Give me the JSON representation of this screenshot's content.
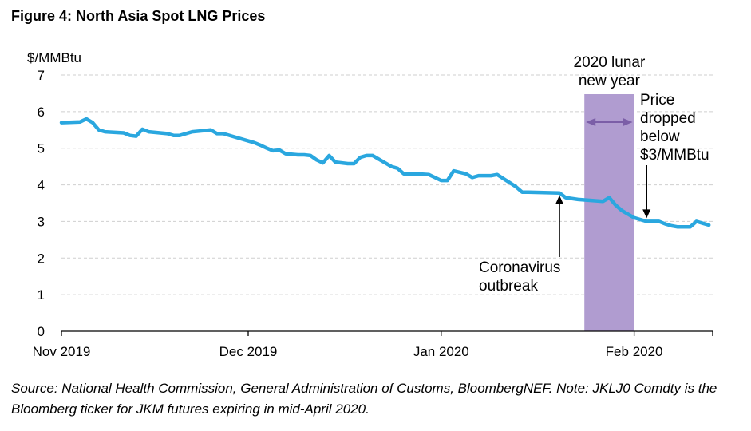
{
  "title": "Figure 4:  North Asia Spot LNG Prices",
  "source_note": "Source: National Health Commission, General Administration of Customs, BloombergNEF. Note: JKLJ0 Comdty is the Bloomberg ticker for JKM futures expiring in mid-April 2020.",
  "colors": {
    "line": "#2aa7df",
    "shade": "#b09cd0",
    "arrow": "#7b5ea7",
    "grid": "#cfcfcf"
  },
  "chart_data": {
    "type": "line",
    "title": "Figure 4:  North Asia Spot LNG Prices",
    "ylabel": "$/MMBtu",
    "xlabel": "",
    "ylim": [
      0,
      7
    ],
    "yticks": [
      0,
      1,
      2,
      3,
      4,
      5,
      6,
      7
    ],
    "xlim": [
      "2019-11-01",
      "2020-02-13"
    ],
    "xticks": [
      {
        "date": "2019-11-01",
        "label": "Nov 2019"
      },
      {
        "date": "2019-12-01",
        "label": "Dec 2019"
      },
      {
        "date": "2020-01-01",
        "label": "Jan 2020"
      },
      {
        "date": "2020-02-01",
        "label": "Feb 2020"
      }
    ],
    "grid": "horizontal dashed",
    "series": [
      {
        "points": [
          [
            "2019-11-01",
            5.7
          ],
          [
            "2019-11-04",
            5.72
          ],
          [
            "2019-11-05",
            5.8
          ],
          [
            "2019-11-06",
            5.7
          ],
          [
            "2019-11-07",
            5.5
          ],
          [
            "2019-11-08",
            5.45
          ],
          [
            "2019-11-11",
            5.42
          ],
          [
            "2019-11-12",
            5.35
          ],
          [
            "2019-11-13",
            5.33
          ],
          [
            "2019-11-14",
            5.52
          ],
          [
            "2019-11-15",
            5.45
          ],
          [
            "2019-11-18",
            5.4
          ],
          [
            "2019-11-19",
            5.35
          ],
          [
            "2019-11-20",
            5.35
          ],
          [
            "2019-11-22",
            5.45
          ],
          [
            "2019-11-25",
            5.5
          ],
          [
            "2019-11-26",
            5.4
          ],
          [
            "2019-11-27",
            5.4
          ],
          [
            "2019-11-29",
            5.3
          ],
          [
            "2019-12-02",
            5.15
          ],
          [
            "2019-12-03",
            5.08
          ],
          [
            "2019-12-04",
            5.0
          ],
          [
            "2019-12-05",
            4.93
          ],
          [
            "2019-12-06",
            4.95
          ],
          [
            "2019-12-07",
            4.85
          ],
          [
            "2019-12-09",
            4.82
          ],
          [
            "2019-12-10",
            4.82
          ],
          [
            "2019-12-11",
            4.8
          ],
          [
            "2019-12-12",
            4.68
          ],
          [
            "2019-12-13",
            4.6
          ],
          [
            "2019-12-14",
            4.8
          ],
          [
            "2019-12-15",
            4.62
          ],
          [
            "2019-12-17",
            4.58
          ],
          [
            "2019-12-18",
            4.58
          ],
          [
            "2019-12-19",
            4.75
          ],
          [
            "2019-12-20",
            4.8
          ],
          [
            "2019-12-21",
            4.8
          ],
          [
            "2019-12-23",
            4.6
          ],
          [
            "2019-12-24",
            4.5
          ],
          [
            "2019-12-25",
            4.45
          ],
          [
            "2019-12-26",
            4.3
          ],
          [
            "2019-12-28",
            4.3
          ],
          [
            "2019-12-30",
            4.28
          ],
          [
            "2019-12-31",
            4.2
          ],
          [
            "2020-01-01",
            4.12
          ],
          [
            "2020-01-02",
            4.12
          ],
          [
            "2020-01-03",
            4.38
          ],
          [
            "2020-01-05",
            4.3
          ],
          [
            "2020-01-06",
            4.2
          ],
          [
            "2020-01-07",
            4.25
          ],
          [
            "2020-01-09",
            4.25
          ],
          [
            "2020-01-10",
            4.28
          ],
          [
            "2020-01-13",
            3.95
          ],
          [
            "2020-01-14",
            3.8
          ],
          [
            "2020-01-15",
            3.8
          ],
          [
            "2020-01-20",
            3.78
          ],
          [
            "2020-01-21",
            3.65
          ],
          [
            "2020-01-23",
            3.6
          ],
          [
            "2020-01-27",
            3.55
          ],
          [
            "2020-01-28",
            3.65
          ],
          [
            "2020-01-29",
            3.45
          ],
          [
            "2020-01-30",
            3.3
          ],
          [
            "2020-02-01",
            3.1
          ],
          [
            "2020-02-03",
            3.0
          ],
          [
            "2020-02-05",
            3.0
          ],
          [
            "2020-02-06",
            2.93
          ],
          [
            "2020-02-07",
            2.88
          ],
          [
            "2020-02-08",
            2.85
          ],
          [
            "2020-02-10",
            2.85
          ],
          [
            "2020-02-11",
            3.0
          ],
          [
            "2020-02-12",
            2.95
          ],
          [
            "2020-02-13",
            2.9
          ]
        ]
      }
    ],
    "shaded_region": {
      "from": "2020-01-24",
      "to": "2020-02-01",
      "label": "2020 lunar new year"
    },
    "annotations": [
      {
        "text": "Coronavirus outbreak",
        "lines": [
          "Coronavirus",
          "outbreak"
        ],
        "target": [
          "2020-01-20",
          3.8
        ]
      },
      {
        "text": "Price dropped below $3/MMBtu",
        "lines": [
          "Price",
          "dropped",
          "below",
          "$3/MMBtu"
        ],
        "target": [
          "2020-02-03",
          3.0
        ]
      }
    ]
  }
}
